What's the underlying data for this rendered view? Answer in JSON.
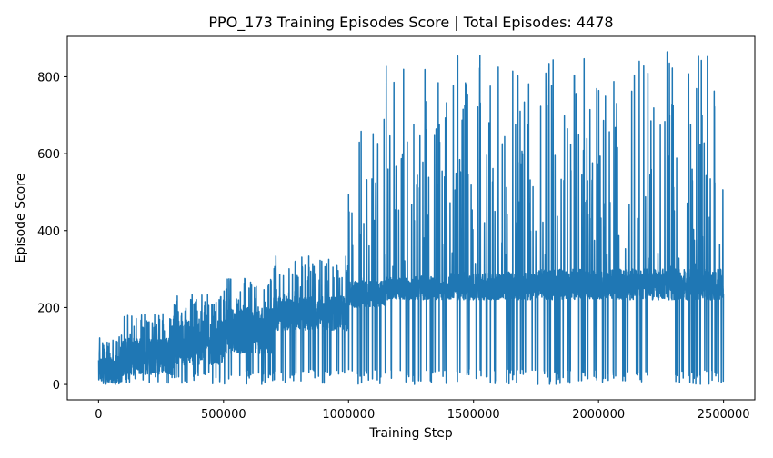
{
  "chart_data": {
    "type": "line",
    "title": "PPO_173 Training Episodes Score | Total Episodes: 4478",
    "xlabel": "Training Step",
    "ylabel": "Episode Score",
    "xlim": [
      -125000,
      2625000
    ],
    "ylim": [
      -40,
      905
    ],
    "xticks": [
      0,
      500000,
      1000000,
      1500000,
      2000000,
      2500000
    ],
    "xtick_labels": [
      "0",
      "500000",
      "1000000",
      "1500000",
      "2000000",
      "2500000"
    ],
    "yticks": [
      0,
      200,
      400,
      600,
      800
    ],
    "ytick_labels": [
      "0",
      "200",
      "400",
      "600",
      "800"
    ],
    "grid": false,
    "legend": "none",
    "series_color": "#1f77b4",
    "phases": [
      {
        "from": 0,
        "to": 100000,
        "low": 0,
        "high": 70,
        "spike_max": 130
      },
      {
        "from": 100000,
        "to": 300000,
        "low": 25,
        "high": 120,
        "spike_max": 190
      },
      {
        "from": 300000,
        "to": 500000,
        "low": 50,
        "high": 170,
        "spike_max": 235
      },
      {
        "from": 500000,
        "to": 700000,
        "low": 80,
        "high": 200,
        "spike_max": 280
      },
      {
        "from": 700000,
        "to": 1000000,
        "low": 140,
        "high": 230,
        "spike_max": 335
      },
      {
        "from": 1000000,
        "to": 1150000,
        "low": 200,
        "high": 270,
        "spike_max": 700
      },
      {
        "from": 1150000,
        "to": 1400000,
        "low": 220,
        "high": 280,
        "spike_max": 835
      },
      {
        "from": 1400000,
        "to": 1750000,
        "low": 220,
        "high": 290,
        "spike_max": 855
      },
      {
        "from": 1750000,
        "to": 2500000,
        "low": 220,
        "high": 300,
        "spike_max": 865
      }
    ],
    "drops_to_zero": true
  }
}
